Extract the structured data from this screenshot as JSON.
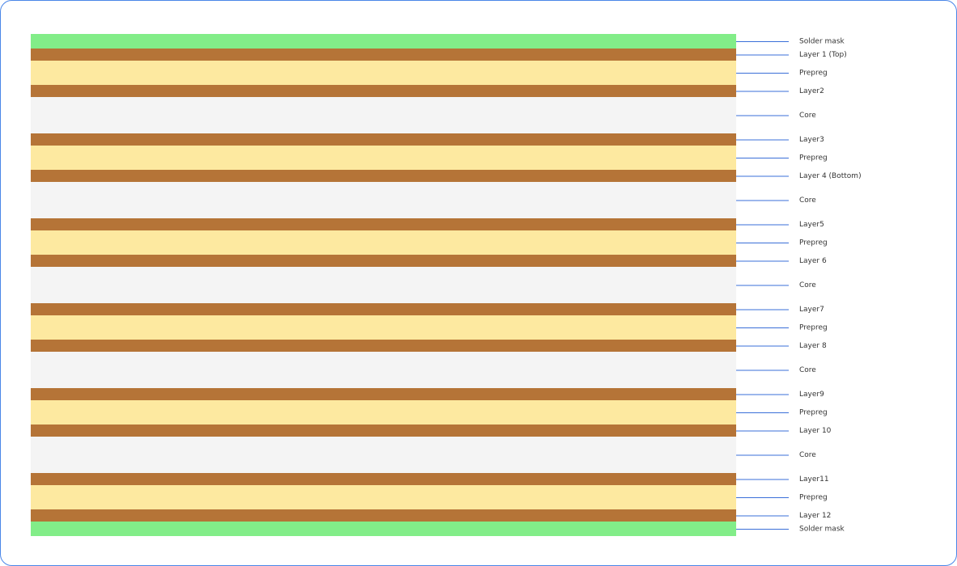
{
  "layers": [
    {
      "label": "Solder mask"
    },
    {
      "label": "Layer 1 (Top)"
    },
    {
      "label": "Prepreg"
    },
    {
      "label": "Layer2"
    },
    {
      "label": "Core"
    },
    {
      "label": "Layer3"
    },
    {
      "label": "Prepreg"
    },
    {
      "label": "Layer 4 (Bottom)"
    },
    {
      "label": "Core"
    },
    {
      "label": "Layer5"
    },
    {
      "label": "Prepreg"
    },
    {
      "label": "Layer 6"
    },
    {
      "label": "Core"
    },
    {
      "label": "Layer7"
    },
    {
      "label": "Prepreg"
    },
    {
      "label": "Layer 8"
    },
    {
      "label": "Core"
    },
    {
      "label": "Layer9"
    },
    {
      "label": "Prepreg"
    },
    {
      "label": "Layer 10"
    },
    {
      "label": "Core"
    },
    {
      "label": "Layer11"
    },
    {
      "label": "Prepreg"
    },
    {
      "label": "Layer 12"
    },
    {
      "label": "Solder mask"
    }
  ]
}
